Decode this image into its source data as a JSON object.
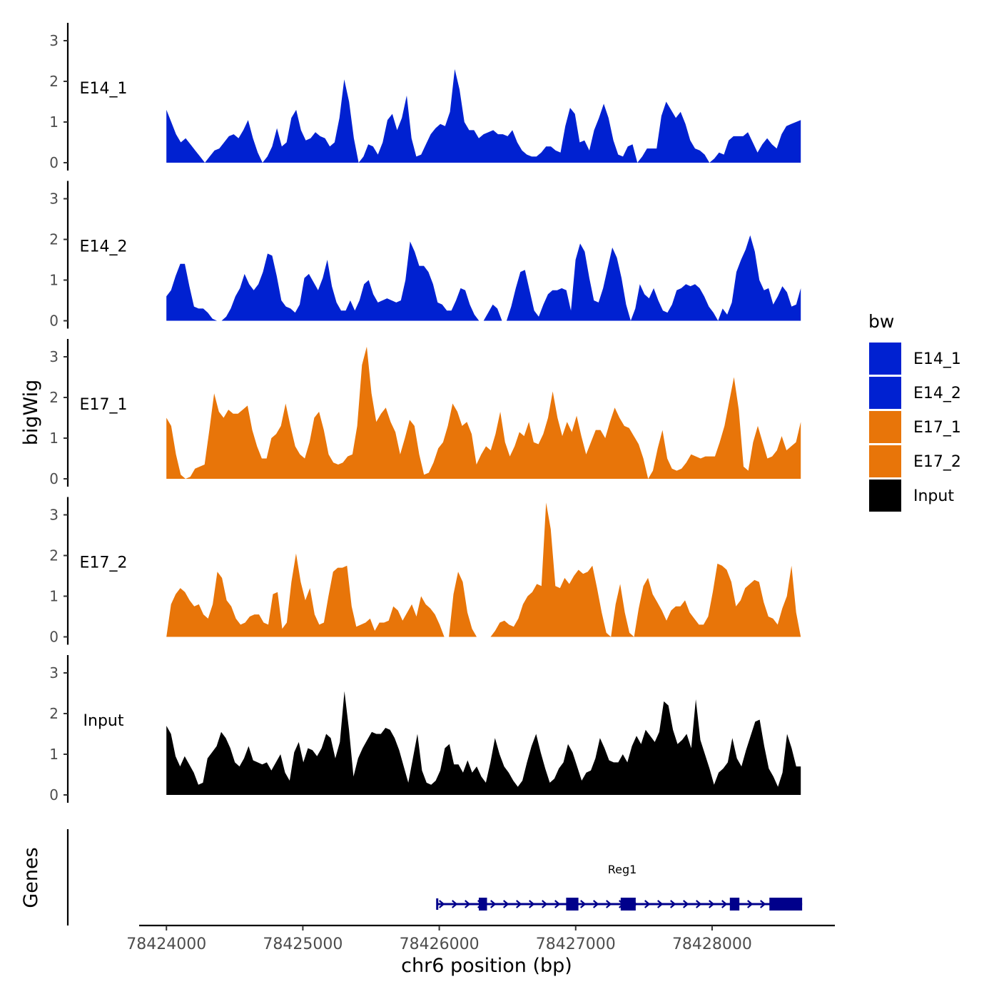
{
  "chart_data": {
    "type": "area",
    "xlabel": "chr6 position (bp)",
    "ylabel": "bigWig",
    "genes_label": "Genes",
    "legend_title": "bw",
    "xlim": [
      78423800,
      78428900
    ],
    "ylim": [
      0,
      3.4
    ],
    "x_ticks": [
      78424000,
      78425000,
      78426000,
      78427000,
      78428000
    ],
    "x_tick_labels": [
      "78424000",
      "78425000",
      "78426000",
      "78427000",
      "78428000"
    ],
    "y_ticks": [
      0,
      1,
      2,
      3
    ],
    "y_tick_labels": [
      "0",
      "1",
      "2",
      "3"
    ],
    "track_x_range": [
      78424000,
      78428650
    ],
    "colors": {
      "E14": "#0021D1",
      "E17": "#E87509",
      "Input": "#000000",
      "gene": "#00008B"
    },
    "legend": [
      {
        "label": "E14_1",
        "color": "#0021D1"
      },
      {
        "label": "E14_2",
        "color": "#0021D1"
      },
      {
        "label": "E17_1",
        "color": "#E87509"
      },
      {
        "label": "E17_2",
        "color": "#E87509"
      },
      {
        "label": "Input",
        "color": "#000000"
      }
    ],
    "series": [
      {
        "name": "E14_1",
        "color": "#0021D1",
        "values": [
          1.3,
          1.0,
          0.7,
          0.5,
          0.6,
          0.45,
          0.3,
          0.15,
          0.0,
          0.15,
          0.3,
          0.35,
          0.5,
          0.65,
          0.7,
          0.6,
          0.8,
          1.05,
          0.6,
          0.25,
          0.0,
          0.15,
          0.4,
          0.85,
          0.4,
          0.5,
          1.1,
          1.3,
          0.8,
          0.55,
          0.6,
          0.75,
          0.65,
          0.6,
          0.4,
          0.5,
          1.1,
          2.05,
          1.5,
          0.6,
          0.0,
          0.15,
          0.45,
          0.4,
          0.2,
          0.5,
          1.05,
          1.2,
          0.8,
          1.1,
          1.65,
          0.6,
          0.15,
          0.2,
          0.45,
          0.7,
          0.85,
          0.95,
          0.9,
          1.25,
          2.3,
          1.8,
          1.0,
          0.8,
          0.8,
          0.6,
          0.7,
          0.75,
          0.8,
          0.7,
          0.7,
          0.65,
          0.8,
          0.5,
          0.3,
          0.2,
          0.15,
          0.15,
          0.25,
          0.4,
          0.4,
          0.3,
          0.25,
          0.9,
          1.35,
          1.2,
          0.5,
          0.55,
          0.3,
          0.8,
          1.1,
          1.45,
          1.1,
          0.55,
          0.2,
          0.15,
          0.4,
          0.45,
          0.0,
          0.15,
          0.35,
          0.35,
          0.35,
          1.15,
          1.5,
          1.3,
          1.1,
          1.25,
          0.95,
          0.55,
          0.35,
          0.3,
          0.2,
          0.0,
          0.1,
          0.25,
          0.2,
          0.55,
          0.65,
          0.65,
          0.65,
          0.75,
          0.5,
          0.25,
          0.45,
          0.6,
          0.45,
          0.35,
          0.7,
          0.9,
          0.95,
          1.0,
          1.05
        ]
      },
      {
        "name": "E14_2",
        "color": "#0021D1",
        "values": [
          0.6,
          0.75,
          1.1,
          1.4,
          1.4,
          0.85,
          0.35,
          0.3,
          0.3,
          0.2,
          0.05,
          0.0,
          0.0,
          0.1,
          0.3,
          0.6,
          0.8,
          1.15,
          0.9,
          0.75,
          0.9,
          1.2,
          1.65,
          1.6,
          1.1,
          0.5,
          0.35,
          0.3,
          0.2,
          0.4,
          1.05,
          1.15,
          0.95,
          0.75,
          1.05,
          1.5,
          0.85,
          0.45,
          0.25,
          0.25,
          0.5,
          0.25,
          0.5,
          0.9,
          1.0,
          0.65,
          0.45,
          0.5,
          0.55,
          0.5,
          0.45,
          0.5,
          1.0,
          1.95,
          1.7,
          1.35,
          1.35,
          1.2,
          0.9,
          0.45,
          0.4,
          0.25,
          0.25,
          0.5,
          0.8,
          0.75,
          0.4,
          0.15,
          0.0,
          0.0,
          0.2,
          0.4,
          0.3,
          0.0,
          0.0,
          0.35,
          0.8,
          1.2,
          1.25,
          0.75,
          0.25,
          0.1,
          0.4,
          0.65,
          0.75,
          0.75,
          0.8,
          0.75,
          0.25,
          1.5,
          1.9,
          1.7,
          1.05,
          0.5,
          0.45,
          0.8,
          1.3,
          1.8,
          1.55,
          1.05,
          0.4,
          0.0,
          0.3,
          0.9,
          0.65,
          0.55,
          0.8,
          0.5,
          0.25,
          0.2,
          0.4,
          0.75,
          0.8,
          0.9,
          0.85,
          0.9,
          0.8,
          0.6,
          0.35,
          0.2,
          0.0,
          0.3,
          0.15,
          0.45,
          1.2,
          1.5,
          1.75,
          2.1,
          1.7,
          1.0,
          0.75,
          0.8,
          0.4,
          0.6,
          0.85,
          0.7,
          0.35,
          0.4,
          0.8
        ]
      },
      {
        "name": "E17_1",
        "color": "#E87509",
        "values": [
          1.5,
          1.3,
          0.6,
          0.1,
          0.0,
          0.05,
          0.25,
          0.3,
          0.35,
          1.2,
          2.1,
          1.65,
          1.5,
          1.7,
          1.6,
          1.6,
          1.7,
          1.8,
          1.2,
          0.8,
          0.5,
          0.5,
          1.0,
          1.1,
          1.3,
          1.85,
          1.3,
          0.8,
          0.6,
          0.5,
          0.9,
          1.5,
          1.65,
          1.2,
          0.6,
          0.4,
          0.35,
          0.4,
          0.55,
          0.6,
          1.3,
          2.8,
          3.25,
          2.1,
          1.4,
          1.6,
          1.75,
          1.4,
          1.15,
          0.6,
          1.0,
          1.45,
          1.3,
          0.6,
          0.1,
          0.15,
          0.4,
          0.75,
          0.9,
          1.3,
          1.85,
          1.65,
          1.3,
          1.4,
          1.1,
          0.35,
          0.6,
          0.8,
          0.7,
          1.1,
          1.65,
          0.9,
          0.55,
          0.8,
          1.15,
          1.05,
          1.4,
          0.9,
          0.85,
          1.1,
          1.5,
          2.15,
          1.5,
          1.05,
          1.4,
          1.15,
          1.55,
          1.05,
          0.6,
          0.9,
          1.2,
          1.2,
          1.0,
          1.4,
          1.75,
          1.5,
          1.3,
          1.25,
          1.05,
          0.85,
          0.5,
          0.0,
          0.2,
          0.75,
          1.2,
          0.5,
          0.25,
          0.2,
          0.25,
          0.4,
          0.6,
          0.55,
          0.5,
          0.55,
          0.55,
          0.55,
          0.9,
          1.3,
          1.9,
          2.5,
          1.7,
          0.3,
          0.2,
          0.9,
          1.3,
          0.9,
          0.5,
          0.55,
          0.7,
          1.05,
          0.7,
          0.8,
          0.9,
          1.4
        ]
      },
      {
        "name": "E17_2",
        "color": "#E87509",
        "values": [
          0.0,
          0.8,
          1.05,
          1.2,
          1.1,
          0.9,
          0.75,
          0.8,
          0.55,
          0.45,
          0.8,
          1.6,
          1.45,
          0.9,
          0.75,
          0.45,
          0.3,
          0.35,
          0.5,
          0.55,
          0.55,
          0.35,
          0.3,
          1.05,
          1.1,
          0.2,
          0.35,
          1.35,
          2.05,
          1.35,
          0.9,
          1.2,
          0.55,
          0.3,
          0.35,
          1.0,
          1.6,
          1.7,
          1.7,
          1.75,
          0.75,
          0.25,
          0.3,
          0.35,
          0.45,
          0.15,
          0.35,
          0.35,
          0.4,
          0.75,
          0.65,
          0.4,
          0.6,
          0.8,
          0.5,
          1.0,
          0.8,
          0.7,
          0.55,
          0.3,
          0.0,
          0.0,
          1.05,
          1.6,
          1.35,
          0.6,
          0.2,
          0.0,
          0.0,
          0.0,
          0.0,
          0.15,
          0.35,
          0.4,
          0.3,
          0.25,
          0.45,
          0.8,
          1.0,
          1.1,
          1.3,
          1.25,
          3.3,
          2.65,
          1.25,
          1.2,
          1.45,
          1.3,
          1.5,
          1.65,
          1.55,
          1.6,
          1.75,
          1.2,
          0.6,
          0.1,
          0.0,
          0.8,
          1.3,
          0.6,
          0.1,
          0.0,
          0.7,
          1.25,
          1.45,
          1.05,
          0.85,
          0.65,
          0.4,
          0.65,
          0.75,
          0.75,
          0.9,
          0.6,
          0.45,
          0.3,
          0.3,
          0.5,
          1.1,
          1.8,
          1.75,
          1.65,
          1.35,
          0.75,
          0.9,
          1.2,
          1.3,
          1.4,
          1.35,
          0.85,
          0.5,
          0.45,
          0.3,
          0.7,
          1.0,
          1.75,
          0.6,
          0.0
        ]
      },
      {
        "name": "Input",
        "color": "#000000",
        "values": [
          1.7,
          1.5,
          0.95,
          0.7,
          0.95,
          0.75,
          0.55,
          0.25,
          0.3,
          0.9,
          1.05,
          1.2,
          1.55,
          1.4,
          1.15,
          0.8,
          0.7,
          0.9,
          1.2,
          0.85,
          0.8,
          0.75,
          0.8,
          0.6,
          0.8,
          1.0,
          0.55,
          0.35,
          1.05,
          1.3,
          0.8,
          1.15,
          1.1,
          0.95,
          1.15,
          1.5,
          1.4,
          0.9,
          1.3,
          2.55,
          1.6,
          0.45,
          0.9,
          1.15,
          1.35,
          1.55,
          1.5,
          1.5,
          1.65,
          1.6,
          1.4,
          1.1,
          0.7,
          0.3,
          0.9,
          1.5,
          0.6,
          0.3,
          0.25,
          0.35,
          0.6,
          1.15,
          1.25,
          0.75,
          0.75,
          0.55,
          0.85,
          0.55,
          0.7,
          0.45,
          0.3,
          0.8,
          1.4,
          1.0,
          0.7,
          0.55,
          0.35,
          0.2,
          0.35,
          0.8,
          1.2,
          1.5,
          1.05,
          0.65,
          0.3,
          0.4,
          0.65,
          0.8,
          1.25,
          1.05,
          0.7,
          0.35,
          0.55,
          0.6,
          0.9,
          1.4,
          1.15,
          0.85,
          0.8,
          0.8,
          1.0,
          0.8,
          1.2,
          1.45,
          1.25,
          1.6,
          1.45,
          1.3,
          1.55,
          2.3,
          2.2,
          1.6,
          1.25,
          1.35,
          1.5,
          1.15,
          2.35,
          1.35,
          1.0,
          0.65,
          0.25,
          0.55,
          0.65,
          0.8,
          1.4,
          0.9,
          0.7,
          1.1,
          1.45,
          1.8,
          1.85,
          1.2,
          0.65,
          0.45,
          0.2,
          0.55,
          1.5,
          1.15,
          0.7,
          0.7
        ]
      }
    ],
    "gene": {
      "name": "Reg1",
      "start": 78425985,
      "end": 78428660,
      "strand": "+",
      "exons": [
        [
          78426290,
          78426350
        ],
        [
          78426930,
          78427020
        ],
        [
          78427330,
          78427440
        ],
        [
          78428130,
          78428200
        ],
        [
          78428420,
          78428660
        ]
      ]
    }
  }
}
